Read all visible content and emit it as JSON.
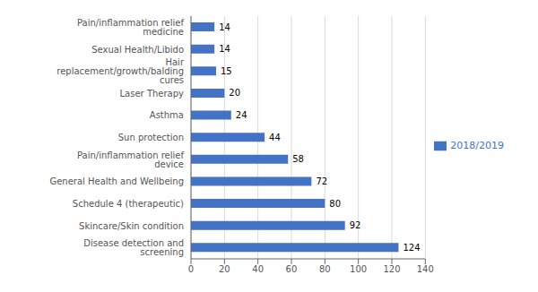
{
  "chart_data": {
    "type": "bar",
    "orientation": "horizontal",
    "categories": [
      "Disease detection and screening",
      "Skincare/Skin condition",
      "Schedule 4 (therapeutic)",
      "General Health and Wellbeing",
      "Pain/inflammation relief device",
      "Sun protection",
      "Asthma",
      "Laser Therapy",
      "Hair replacement/growth/balding cures",
      "Sexual Health/Libido",
      "Pain/inflammation relief medicine"
    ],
    "series": [
      {
        "name": "2018/2019",
        "color": "#4472c4",
        "values": [
          124,
          92,
          80,
          72,
          58,
          44,
          24,
          20,
          15,
          14,
          14
        ]
      }
    ],
    "xlim": [
      0,
      140
    ],
    "xticks": [
      0,
      20,
      40,
      60,
      80,
      100,
      120,
      140
    ],
    "grid": true,
    "legend": "right",
    "data_labels": true
  }
}
